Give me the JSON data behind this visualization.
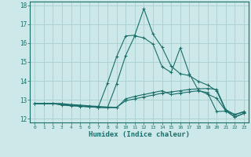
{
  "xlabel": "Humidex (Indice chaleur)",
  "background_color": "#cce8e8",
  "grid_color": "#aad0d0",
  "line_color": "#1a6e6a",
  "xlim": [
    -0.5,
    23.5
  ],
  "ylim": [
    11.8,
    18.2
  ],
  "yticks": [
    12,
    13,
    14,
    15,
    16,
    17,
    18
  ],
  "xticks": [
    0,
    1,
    2,
    3,
    4,
    5,
    6,
    7,
    8,
    9,
    10,
    11,
    12,
    13,
    14,
    15,
    16,
    17,
    18,
    19,
    20,
    21,
    22,
    23
  ],
  "series": [
    [
      12.8,
      12.8,
      12.8,
      12.8,
      12.75,
      12.72,
      12.68,
      12.65,
      12.62,
      12.6,
      12.95,
      13.05,
      13.15,
      13.25,
      13.35,
      13.42,
      13.48,
      13.55,
      13.58,
      13.6,
      13.55,
      12.48,
      12.22,
      12.38
    ],
    [
      12.8,
      12.8,
      12.8,
      12.75,
      12.7,
      12.68,
      12.63,
      12.6,
      12.58,
      13.85,
      15.35,
      16.38,
      16.28,
      15.95,
      14.75,
      14.45,
      15.75,
      14.38,
      13.5,
      13.3,
      13.08,
      12.42,
      12.1,
      12.28
    ],
    [
      12.8,
      12.8,
      12.8,
      12.78,
      12.72,
      12.68,
      12.65,
      12.62,
      13.88,
      15.28,
      16.38,
      16.42,
      17.82,
      16.48,
      15.78,
      14.78,
      14.38,
      14.28,
      13.98,
      13.78,
      13.48,
      12.42,
      12.08,
      12.28
    ],
    [
      12.8,
      12.8,
      12.8,
      12.72,
      12.68,
      12.65,
      12.62,
      12.6,
      12.58,
      12.58,
      13.05,
      13.18,
      13.28,
      13.38,
      13.48,
      13.28,
      13.35,
      13.42,
      13.48,
      13.38,
      12.38,
      12.4,
      12.22,
      12.35
    ]
  ]
}
